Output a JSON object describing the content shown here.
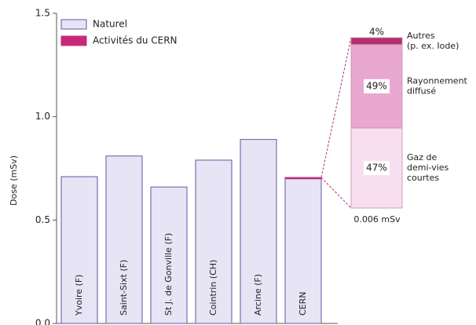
{
  "chart_data": [
    {
      "type": "bar",
      "y_label": "Dose (mSv)",
      "categories": [
        "Yvoire (F)",
        "Saint-Sixt (F)",
        "St J. de Gonville (F)",
        "Cointrin (CH)",
        "Arcine (F)",
        "CERN"
      ],
      "series": [
        {
          "name": "Naturel",
          "color": "#e6e4f5",
          "values": [
            0.71,
            0.81,
            0.66,
            0.79,
            0.89,
            0.7
          ]
        },
        {
          "name": "Activités du CERN",
          "color": "#c8287a",
          "values": [
            null,
            null,
            null,
            null,
            null,
            0.006
          ],
          "value_labels": [
            null,
            null,
            null,
            null,
            null,
            "0.006 mSv"
          ]
        }
      ],
      "stacked": true,
      "ylim": [
        0,
        1.5
      ],
      "yticks": [
        {
          "value": 0,
          "label": "0.0"
        },
        0.5,
        {
          "value": 1,
          "label": "1.0"
        },
        1.5
      ]
    },
    {
      "type": "percent_stack",
      "series": [
        {
          "name": [
            "Gaz de",
            "demi-vies",
            "courtes"
          ],
          "color": "#f8dff0",
          "values": [
            47
          ],
          "value_labels": [
            "47%"
          ]
        },
        {
          "name": [
            "Rayonnement",
            "diffusé"
          ],
          "color": "#e8a8d0",
          "values": [
            49
          ],
          "value_labels": [
            "49%"
          ]
        },
        {
          "name": [
            "Autres",
            "(p. ex. Iode)"
          ],
          "color": "#b3306f",
          "values": [
            4
          ],
          "value_labels": [
            "4%"
          ]
        }
      ]
    }
  ]
}
